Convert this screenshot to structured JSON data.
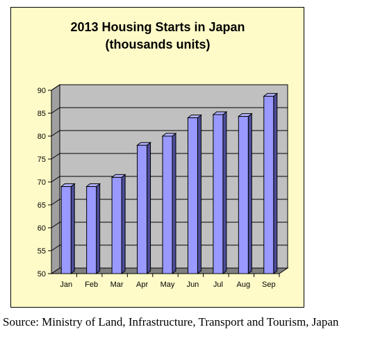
{
  "chart_data": {
    "type": "bar",
    "title": "2013 Housing Starts in Japan",
    "subtitle": "(thousands units)",
    "categories": [
      "Jan",
      "Feb",
      "Mar",
      "Apr",
      "May",
      "Jun",
      "Jul",
      "Aug",
      "Sep"
    ],
    "values": [
      69,
      69,
      71,
      78,
      80,
      84,
      84.7,
      84.3,
      88.7
    ],
    "ylim": [
      50,
      90
    ],
    "yticks": [
      "50",
      "55",
      "60",
      "65",
      "70",
      "75",
      "80",
      "85",
      "90"
    ],
    "xlabel": "",
    "ylabel": "",
    "grid": true,
    "legend": "none",
    "colors": {
      "bar_front": "#9999ff",
      "bar_side": "#4d4d99",
      "bar_top": "#b3b3ff",
      "plot_wall": "#c0c0c0",
      "plot_floor": "#808080",
      "background": "#fffbc8"
    }
  },
  "source": "Source: Ministry of Land, Infrastructure, Transport and Tourism, Japan"
}
